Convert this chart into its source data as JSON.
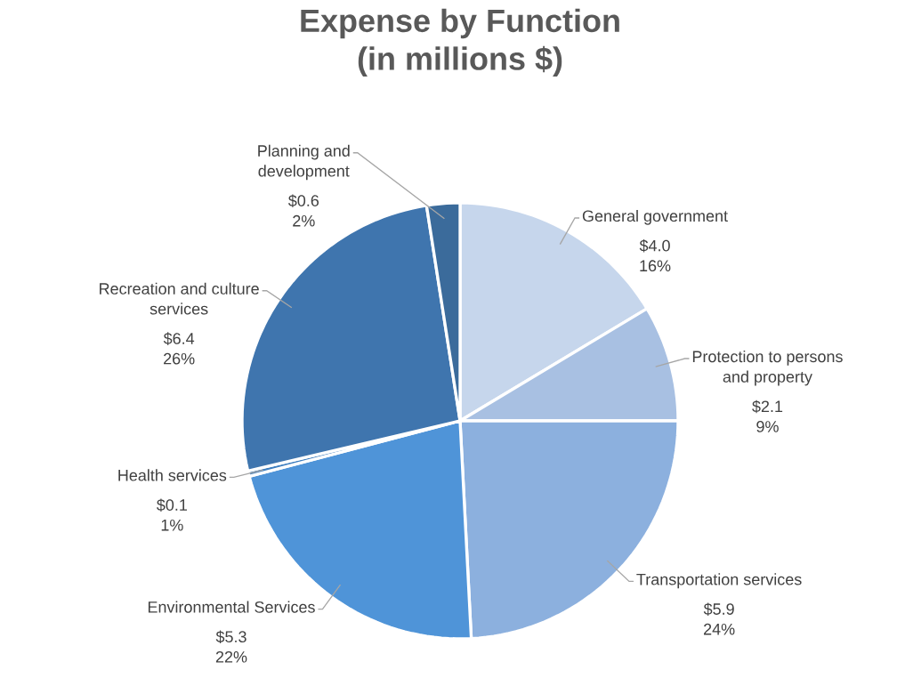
{
  "chart_data": {
    "type": "pie",
    "title": "Expense by Function",
    "subtitle": "(in millions $)",
    "categories": [
      "General government",
      "Protection to persons and property",
      "Transportation services",
      "Environmental Services",
      "Health services",
      "Recreation and culture services",
      "Planning and development"
    ],
    "values": [
      4.0,
      2.1,
      5.9,
      5.3,
      0.1,
      6.4,
      0.6
    ],
    "colors": [
      "#c6d6ec",
      "#a8c0e2",
      "#8cb0de",
      "#4f94d8",
      "#3f7fc0",
      "#3f75ae",
      "#3b6b9b"
    ],
    "value_labels": [
      "$4.0 16%",
      "$2.1 9%",
      "$5.9 24%",
      "$5.3 22%",
      "$0.1 1%",
      "$6.4 26%",
      "$0.6 2%"
    ]
  }
}
